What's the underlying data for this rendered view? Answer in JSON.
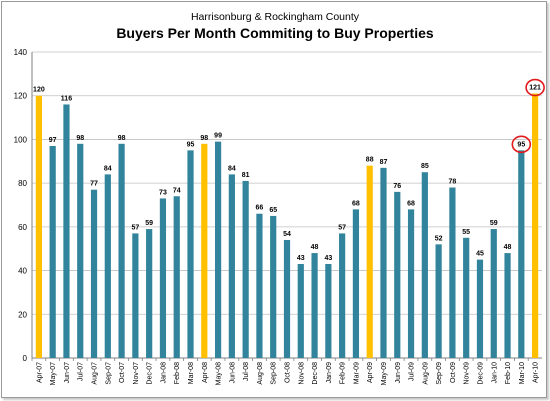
{
  "chart_data": {
    "type": "bar",
    "subtitle": "Harrisonburg & Rockingham County",
    "title": "Buyers Per Month Commiting to Buy Properties",
    "xlabel": "",
    "ylabel": "",
    "ylim": [
      0,
      140
    ],
    "yticks": [
      0,
      20,
      40,
      60,
      80,
      100,
      120,
      140
    ],
    "grid": true,
    "categories": [
      "Apr-07",
      "May-07",
      "Jun-07",
      "Jul-07",
      "Aug-07",
      "Sep-07",
      "Oct-07",
      "Nov-07",
      "Dec-07",
      "Jan-08",
      "Feb-08",
      "Mar-08",
      "Apr-08",
      "May-08",
      "Jun-08",
      "Jul-08",
      "Aug-08",
      "Sep-08",
      "Oct-08",
      "Nov-08",
      "Dec-08",
      "Jan-09",
      "Feb-09",
      "Mar-09",
      "Apr-09",
      "May-09",
      "Jun-09",
      "Jul-09",
      "Aug-09",
      "Sep-09",
      "Oct-09",
      "Nov-09",
      "Dec-09",
      "Jan-10",
      "Feb-10",
      "Mar-10",
      "Apr-10"
    ],
    "values": [
      120,
      97,
      116,
      98,
      77,
      84,
      98,
      57,
      59,
      73,
      74,
      95,
      98,
      99,
      84,
      81,
      66,
      65,
      54,
      43,
      48,
      43,
      57,
      68,
      88,
      87,
      76,
      68,
      85,
      52,
      78,
      55,
      45,
      59,
      48,
      95,
      121
    ],
    "highlighted_categories": [
      "Apr-07",
      "Apr-08",
      "Apr-09",
      "Apr-10"
    ],
    "circled_categories": [
      "Mar-10",
      "Apr-10"
    ],
    "colors": {
      "bar": "#31849B",
      "highlight": "#FFC000",
      "annotation_circle": "#E31A1C",
      "grid": "#C0C0C0"
    }
  }
}
